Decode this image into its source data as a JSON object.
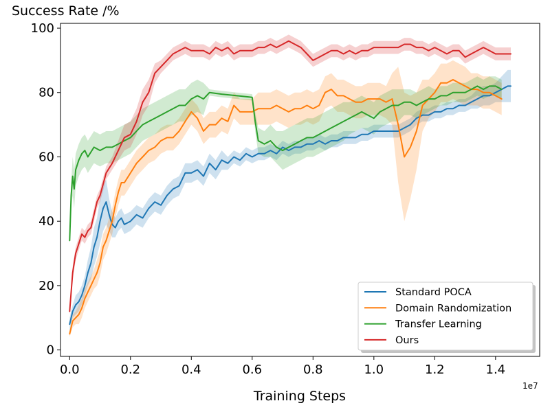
{
  "chart_data": {
    "type": "line",
    "title": "Success Rate /%",
    "xlabel": "Training Steps",
    "ylabel": "",
    "x_offset_label": "1e7",
    "xlim": [
      -0.03,
      1.545
    ],
    "ylim": [
      -2,
      101.5
    ],
    "x_ticks": [
      0.0,
      0.2,
      0.4,
      0.6,
      0.8,
      1.0,
      1.2,
      1.4
    ],
    "x_tick_labels": [
      "0.0",
      "0.2",
      "0.4",
      "0.6",
      "0.8",
      "1.0",
      "1.2",
      "1.4"
    ],
    "y_ticks": [
      0,
      20,
      40,
      60,
      80,
      100
    ],
    "y_tick_labels": [
      "0",
      "20",
      "40",
      "60",
      "80",
      "100"
    ],
    "legend_position": "lower-right",
    "series": [
      {
        "name": "Standard POCA",
        "color": "#1f77b4",
        "x": [
          0.0,
          0.01,
          0.02,
          0.03,
          0.04,
          0.05,
          0.06,
          0.07,
          0.08,
          0.09,
          0.1,
          0.11,
          0.12,
          0.13,
          0.14,
          0.15,
          0.16,
          0.17,
          0.18,
          0.2,
          0.22,
          0.24,
          0.26,
          0.28,
          0.3,
          0.32,
          0.34,
          0.36,
          0.38,
          0.4,
          0.42,
          0.44,
          0.46,
          0.48,
          0.5,
          0.52,
          0.54,
          0.56,
          0.58,
          0.6,
          0.62,
          0.64,
          0.66,
          0.68,
          0.7,
          0.72,
          0.74,
          0.76,
          0.78,
          0.8,
          0.82,
          0.84,
          0.86,
          0.88,
          0.9,
          0.92,
          0.94,
          0.96,
          0.98,
          1.0,
          1.02,
          1.04,
          1.06,
          1.08,
          1.1,
          1.12,
          1.14,
          1.16,
          1.18,
          1.2,
          1.22,
          1.24,
          1.26,
          1.28,
          1.3,
          1.32,
          1.34,
          1.36,
          1.38,
          1.4,
          1.42,
          1.44,
          1.45
        ],
        "y": [
          8,
          12,
          14,
          15,
          17,
          20,
          24,
          27,
          32,
          35,
          40,
          44,
          46,
          42,
          39,
          38,
          40,
          41,
          39,
          40,
          42,
          41,
          44,
          46,
          45,
          48,
          50,
          51,
          55,
          55,
          56,
          54,
          58,
          56,
          59,
          58,
          60,
          59,
          61,
          60,
          61,
          61,
          62,
          61,
          63,
          62,
          63,
          63,
          64,
          64,
          65,
          64,
          65,
          65,
          66,
          66,
          66,
          67,
          67,
          68,
          68,
          68,
          68,
          68,
          69,
          70,
          72,
          73,
          73,
          74,
          74,
          75,
          75,
          76,
          76,
          77,
          78,
          79,
          79,
          80,
          81,
          82,
          82
        ],
        "band": [
          2,
          2,
          3,
          3,
          3,
          3,
          4,
          5,
          6,
          6,
          7,
          7,
          7,
          5,
          4,
          3,
          3,
          3,
          3,
          3,
          3,
          3,
          3,
          3,
          3,
          3,
          3,
          3,
          3,
          3,
          3,
          3,
          3,
          3,
          3,
          2,
          2,
          2,
          2,
          2,
          2,
          2,
          2,
          2,
          2,
          2,
          2,
          2,
          2,
          2,
          2,
          2,
          2,
          2,
          2,
          2,
          2,
          2,
          2,
          2,
          2,
          2,
          2,
          2,
          2,
          2,
          2,
          2,
          2,
          2,
          2,
          2,
          2,
          2,
          2,
          2,
          3,
          3,
          3,
          3,
          4,
          5,
          5
        ]
      },
      {
        "name": "Domain Randomization",
        "color": "#ff7f0e",
        "x": [
          0.0,
          0.01,
          0.02,
          0.03,
          0.04,
          0.05,
          0.06,
          0.07,
          0.08,
          0.09,
          0.1,
          0.11,
          0.12,
          0.13,
          0.14,
          0.15,
          0.16,
          0.17,
          0.18,
          0.2,
          0.22,
          0.24,
          0.26,
          0.28,
          0.3,
          0.32,
          0.34,
          0.36,
          0.38,
          0.4,
          0.42,
          0.44,
          0.46,
          0.48,
          0.5,
          0.52,
          0.54,
          0.56,
          0.58,
          0.6,
          0.62,
          0.64,
          0.66,
          0.68,
          0.7,
          0.72,
          0.74,
          0.76,
          0.78,
          0.8,
          0.82,
          0.84,
          0.86,
          0.88,
          0.9,
          0.92,
          0.94,
          0.96,
          0.98,
          1.0,
          1.02,
          1.04,
          1.06,
          1.08,
          1.1,
          1.12,
          1.14,
          1.16,
          1.18,
          1.2,
          1.22,
          1.24,
          1.26,
          1.28,
          1.3,
          1.32,
          1.34,
          1.36,
          1.38,
          1.4,
          1.42
        ],
        "y": [
          5,
          9,
          10,
          11,
          13,
          16,
          18,
          20,
          22,
          24,
          27,
          32,
          34,
          37,
          40,
          45,
          49,
          52,
          52,
          55,
          58,
          60,
          62,
          63,
          65,
          66,
          66,
          68,
          71,
          74,
          72,
          68,
          70,
          70,
          72,
          71,
          76,
          74,
          74,
          74,
          75,
          75,
          75,
          76,
          75,
          74,
          75,
          75,
          76,
          75,
          76,
          80,
          81,
          79,
          79,
          78,
          77,
          77,
          78,
          78,
          78,
          77,
          78,
          70,
          60,
          63,
          68,
          76,
          78,
          80,
          83,
          83,
          84,
          83,
          82,
          81,
          81,
          80,
          80,
          79,
          78
        ],
        "band": [
          1,
          2,
          2,
          3,
          3,
          3,
          3,
          3,
          3,
          4,
          4,
          4,
          4,
          4,
          4,
          4,
          4,
          4,
          4,
          4,
          4,
          4,
          4,
          4,
          4,
          4,
          4,
          4,
          4,
          4,
          4,
          4,
          4,
          4,
          4,
          4,
          4,
          4,
          4,
          4,
          5,
          5,
          5,
          5,
          5,
          5,
          5,
          5,
          5,
          5,
          5,
          5,
          5,
          5,
          5,
          5,
          5,
          5,
          5,
          5,
          5,
          5,
          8,
          18,
          20,
          16,
          12,
          8,
          6,
          6,
          6,
          6,
          6,
          6,
          6,
          5,
          5,
          5,
          5,
          5,
          5
        ]
      },
      {
        "name": "Transfer Learning",
        "color": "#2ca02c",
        "x": [
          0.0,
          0.005,
          0.01,
          0.015,
          0.02,
          0.03,
          0.04,
          0.05,
          0.06,
          0.08,
          0.1,
          0.12,
          0.14,
          0.16,
          0.18,
          0.2,
          0.22,
          0.24,
          0.26,
          0.28,
          0.3,
          0.32,
          0.34,
          0.36,
          0.38,
          0.4,
          0.42,
          0.44,
          0.46,
          0.5,
          0.55,
          0.6,
          0.61,
          0.62,
          0.64,
          0.66,
          0.68,
          0.7,
          0.72,
          0.74,
          0.76,
          0.78,
          0.8,
          0.82,
          0.84,
          0.86,
          0.88,
          0.9,
          0.92,
          0.94,
          0.96,
          0.98,
          1.0,
          1.02,
          1.04,
          1.06,
          1.08,
          1.1,
          1.12,
          1.14,
          1.16,
          1.18,
          1.2,
          1.22,
          1.24,
          1.26,
          1.28,
          1.3,
          1.32,
          1.34,
          1.36,
          1.38,
          1.4,
          1.42
        ],
        "y": [
          34,
          48,
          54,
          50,
          56,
          59,
          61,
          62,
          60,
          63,
          62,
          63,
          63,
          64,
          65,
          66,
          68,
          70,
          71,
          72,
          73,
          74,
          75,
          76,
          76,
          78,
          79,
          78,
          80,
          79.5,
          79,
          78.5,
          71,
          65,
          64,
          65,
          63,
          62,
          63,
          64,
          65,
          66,
          66,
          67,
          68,
          69,
          70,
          71,
          72,
          73,
          74,
          73,
          72,
          74,
          75,
          76,
          76,
          77,
          77,
          76,
          77,
          78,
          78,
          79,
          79,
          80,
          80,
          80,
          81,
          82,
          81,
          82,
          82,
          81
        ],
        "band": [
          1,
          4,
          6,
          6,
          5,
          5,
          5,
          5,
          5,
          5,
          5,
          5,
          5,
          5,
          5,
          5,
          5,
          5,
          5,
          5,
          5,
          5,
          5,
          5,
          5,
          5,
          5,
          5,
          1,
          1,
          1,
          1,
          3,
          4,
          4,
          5,
          5,
          6,
          6,
          6,
          6,
          6,
          6,
          6,
          6,
          6,
          6,
          6,
          5,
          5,
          5,
          5,
          5,
          5,
          5,
          5,
          5,
          4,
          4,
          4,
          4,
          4,
          3,
          3,
          3,
          3,
          3,
          3,
          3,
          3,
          3,
          3,
          3,
          3
        ]
      },
      {
        "name": "Ours",
        "color": "#d62728",
        "x": [
          0.0,
          0.01,
          0.02,
          0.03,
          0.04,
          0.05,
          0.06,
          0.07,
          0.08,
          0.09,
          0.1,
          0.12,
          0.14,
          0.16,
          0.18,
          0.2,
          0.22,
          0.24,
          0.26,
          0.28,
          0.3,
          0.32,
          0.34,
          0.36,
          0.38,
          0.4,
          0.42,
          0.44,
          0.46,
          0.48,
          0.5,
          0.52,
          0.54,
          0.56,
          0.58,
          0.6,
          0.62,
          0.64,
          0.66,
          0.68,
          0.7,
          0.72,
          0.74,
          0.76,
          0.78,
          0.8,
          0.82,
          0.84,
          0.86,
          0.88,
          0.9,
          0.92,
          0.94,
          0.96,
          0.98,
          1.0,
          1.02,
          1.04,
          1.06,
          1.08,
          1.1,
          1.12,
          1.14,
          1.16,
          1.18,
          1.2,
          1.22,
          1.24,
          1.26,
          1.28,
          1.3,
          1.32,
          1.34,
          1.36,
          1.38,
          1.4,
          1.42,
          1.44,
          1.45
        ],
        "y": [
          12,
          24,
          30,
          33,
          36,
          35,
          37,
          38,
          42,
          46,
          48,
          55,
          58,
          62,
          66,
          67,
          71,
          77,
          80,
          86,
          88,
          90,
          92,
          93,
          94,
          93,
          93,
          93,
          92,
          94,
          93,
          94,
          92,
          93,
          93,
          93,
          94,
          94,
          95,
          94,
          95,
          96,
          95,
          94,
          92,
          90,
          91,
          92,
          93,
          93,
          92,
          93,
          92,
          93,
          93,
          94,
          94,
          94,
          94,
          94,
          95,
          95,
          94,
          94,
          93,
          94,
          93,
          92,
          93,
          93,
          91,
          92,
          93,
          94,
          93,
          92,
          92,
          92,
          92
        ],
        "band": [
          1,
          2,
          2,
          2,
          2,
          2,
          2,
          2,
          2,
          2,
          2,
          2,
          2,
          3,
          4,
          4,
          4,
          4,
          4,
          3,
          2,
          2,
          2,
          2,
          2,
          2,
          2,
          2,
          2,
          2,
          2,
          2,
          2,
          2,
          2,
          2,
          2,
          2,
          2,
          2,
          2,
          2,
          2,
          2,
          2,
          2,
          2,
          2,
          2,
          2,
          2,
          2,
          2,
          2,
          2,
          2,
          2,
          2,
          2,
          2,
          2,
          2,
          2,
          2,
          2,
          2,
          2,
          2,
          2,
          2,
          2,
          2,
          2,
          2,
          2,
          2,
          2,
          2,
          2
        ]
      }
    ]
  }
}
